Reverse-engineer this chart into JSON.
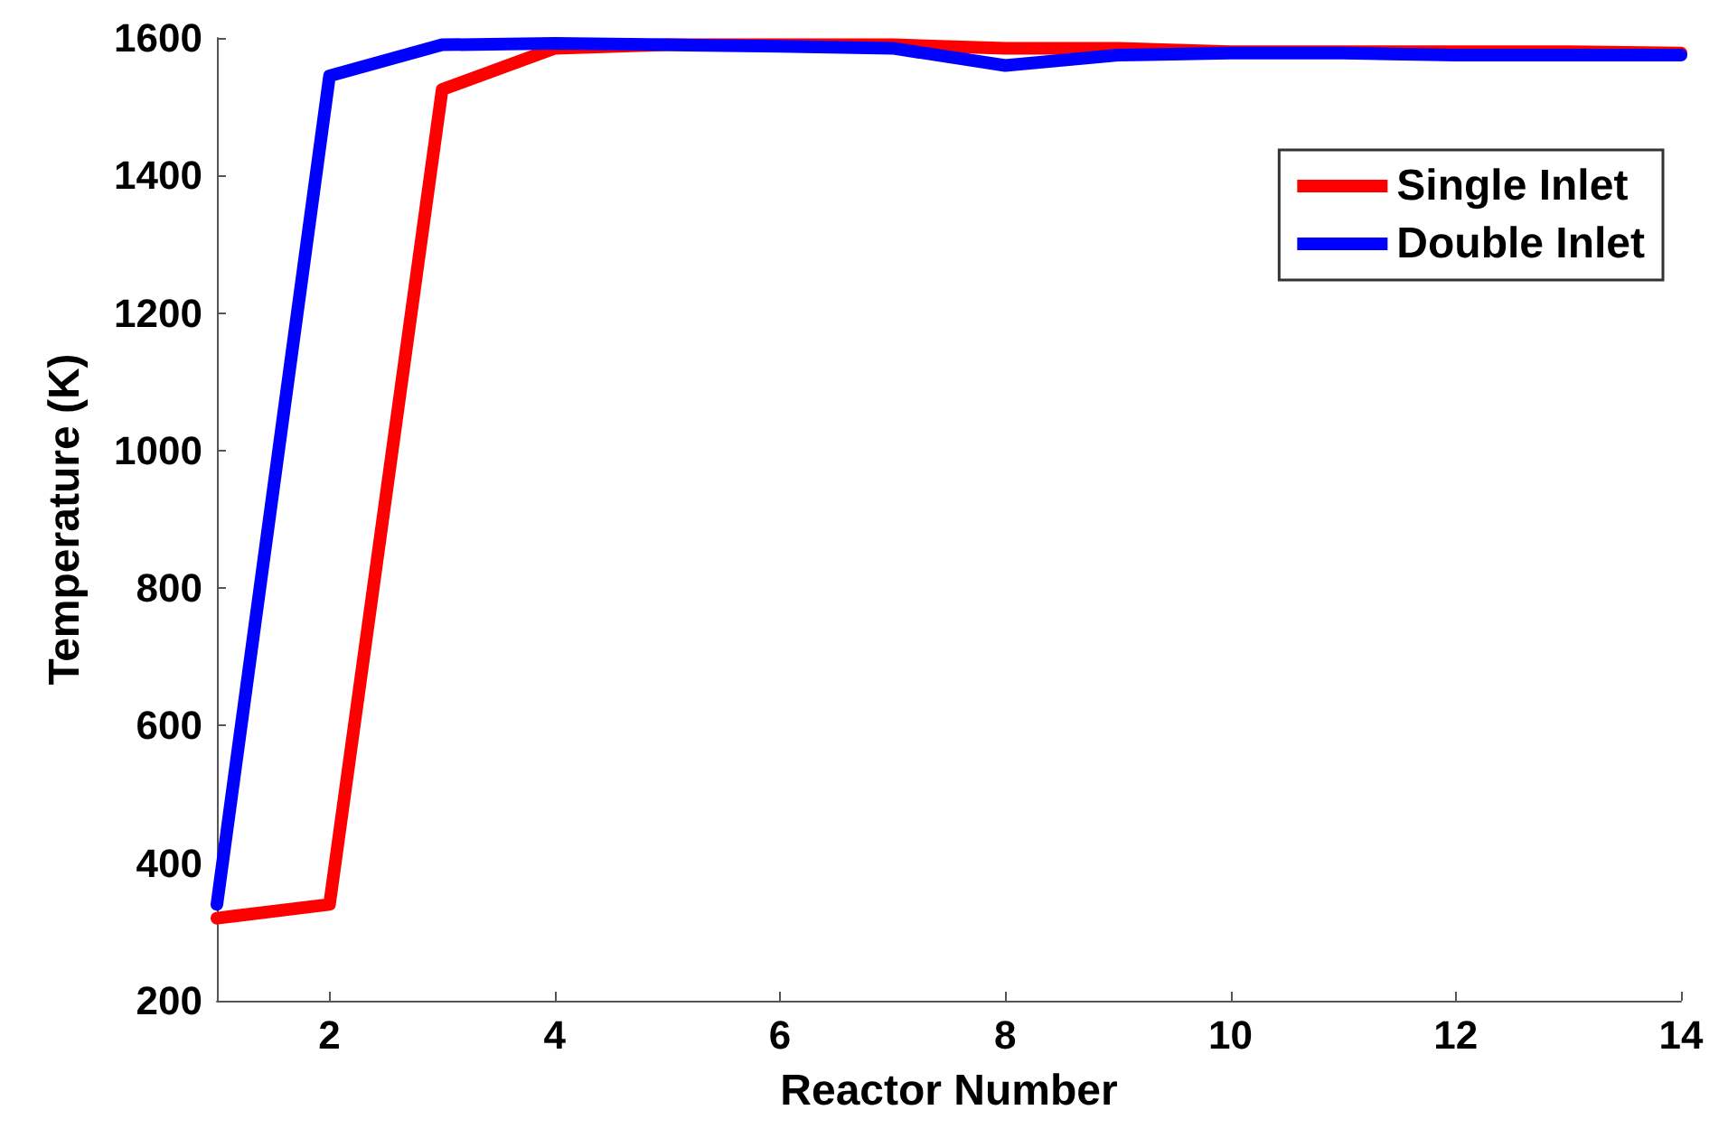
{
  "chart_data": {
    "type": "line",
    "xlabel": "Reactor Number",
    "ylabel": "Temperature (K)",
    "x": [
      1,
      2,
      3,
      4,
      5,
      6,
      7,
      8,
      9,
      10,
      11,
      12,
      13,
      14
    ],
    "series": [
      {
        "name": "Single Inlet",
        "color": "#ff0000",
        "values": [
          320,
          340,
          1525,
          1585,
          1590,
          1590,
          1590,
          1585,
          1585,
          1580,
          1580,
          1580,
          1580,
          1578
        ]
      },
      {
        "name": "Double Inlet",
        "color": "#0000ff",
        "values": [
          340,
          1545,
          1590,
          1592,
          1590,
          1588,
          1585,
          1560,
          1575,
          1578,
          1578,
          1575,
          1575,
          1575
        ]
      }
    ],
    "xlim": [
      1,
      14
    ],
    "xticks": [
      2,
      4,
      6,
      8,
      10,
      12,
      14
    ],
    "ylim": [
      200,
      1600
    ],
    "yticks": [
      200,
      400,
      600,
      800,
      1000,
      1200,
      1400,
      1600
    ],
    "grid": false,
    "legend": "top right",
    "marker": "none",
    "line_style": "solid"
  }
}
